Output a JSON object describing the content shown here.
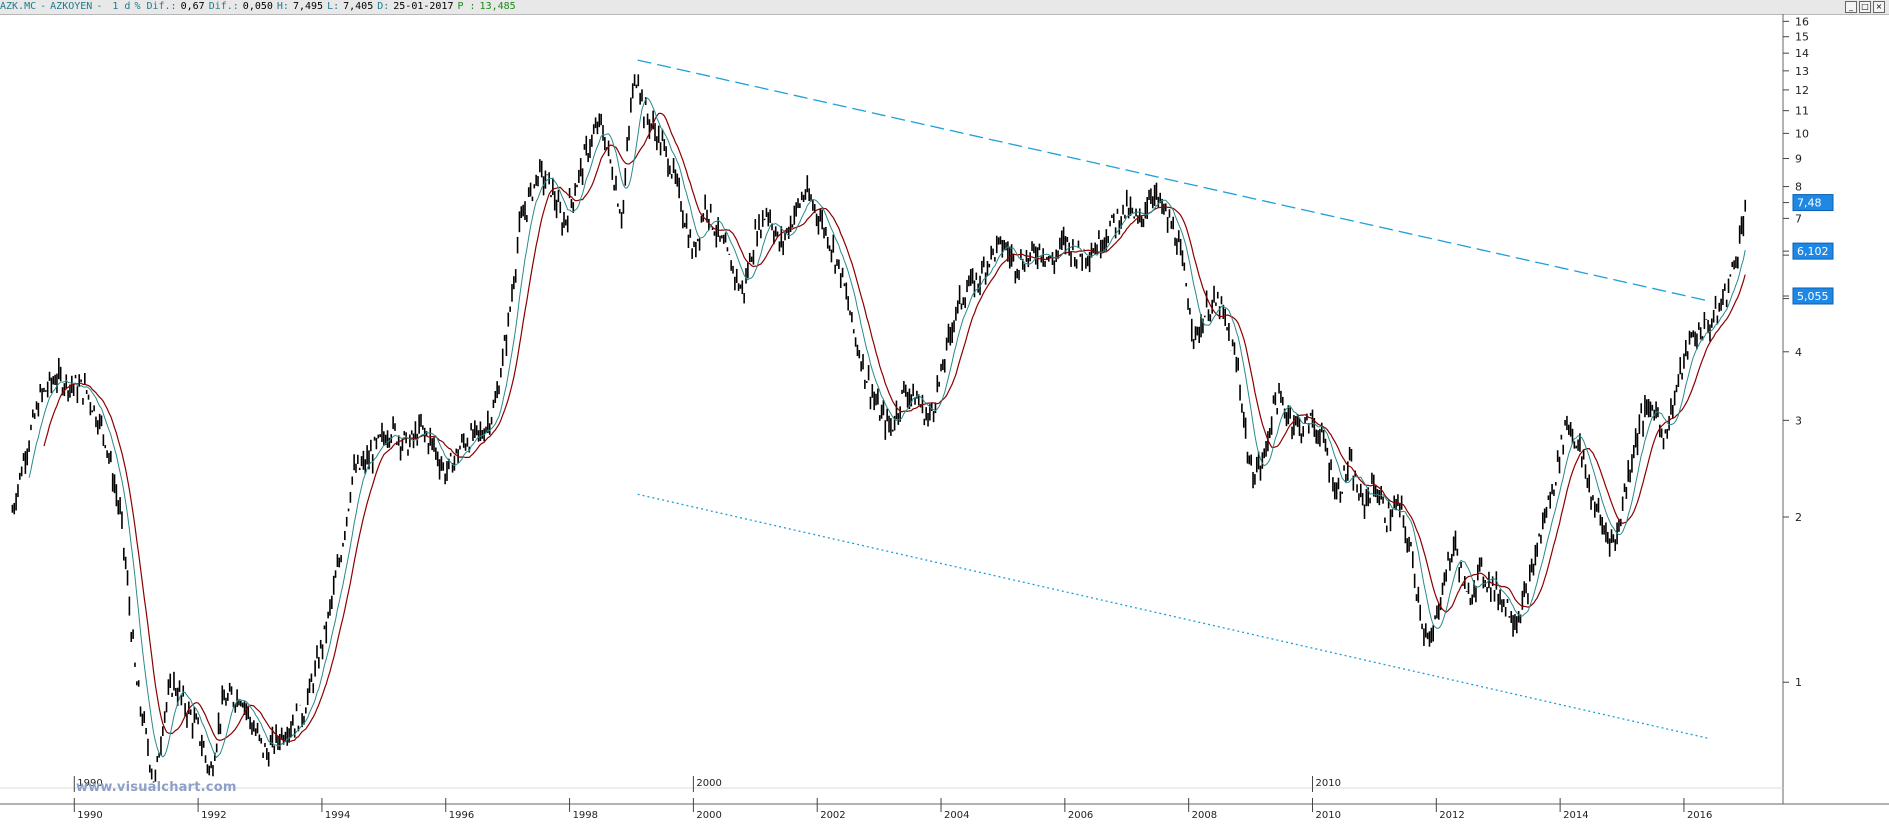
{
  "header": {
    "symbol": "AZK.MC",
    "sep1": "-",
    "name": "AZKOYEN",
    "sep2": "-",
    "period": "1 d",
    "dif_pct_label": "% Dif.:",
    "dif_pct_value": "0,67",
    "dif_label": "Dif.:",
    "dif_value": "0,050",
    "high_label": "H:",
    "high_value": "7,495",
    "low_label": "L:",
    "low_value": "7,405",
    "date_label": "D:",
    "date_value": "25-01-2017",
    "p_label": "P :",
    "p_value": "13,485"
  },
  "window_controls": [
    "_",
    "□",
    "×"
  ],
  "watermark": "www.visualchart.com",
  "colors": {
    "candles": "#000000",
    "ma_slow": "#8b0000",
    "ma_fast": "#2a8a8a",
    "trendline": "#1ea0d8",
    "badge": "#1e88e5"
  },
  "chart_data": {
    "type": "candlestick",
    "y_scale": "log",
    "ylim": [
      0.6,
      16.5
    ],
    "xlim": [
      1988.8,
      2017.6
    ],
    "y_ticks": [
      1,
      2,
      3,
      4,
      5,
      6,
      7,
      8,
      9,
      10,
      11,
      12,
      13,
      14,
      15,
      16
    ],
    "y_tick_labels": [
      "1",
      "2",
      "3",
      "4",
      "",
      "",
      "7",
      "8",
      "9",
      "10",
      "11",
      "12",
      "13",
      "14",
      "15",
      "16"
    ],
    "x_ticks": [
      1990,
      1992,
      1994,
      1996,
      1998,
      2000,
      2002,
      2004,
      2006,
      2008,
      2010,
      2012,
      2014,
      2016
    ],
    "x_tick_labels": [
      "1990",
      "1992",
      "1994",
      "1996",
      "1998",
      "2000",
      "2002",
      "2004",
      "2006",
      "2008",
      "2010",
      "2012",
      "2014",
      "2016"
    ],
    "x_upper_labels": [
      {
        "x": 1990,
        "label": "1990"
      },
      {
        "x": 2000,
        "label": "2000"
      },
      {
        "x": 2010,
        "label": "2010"
      }
    ],
    "series": [
      {
        "points": [
          [
            1989.0,
            2.05
          ],
          [
            1989.2,
            2.6
          ],
          [
            1989.45,
            3.3
          ],
          [
            1989.7,
            3.6
          ],
          [
            1989.9,
            3.5
          ],
          [
            1990.2,
            3.4
          ],
          [
            1990.5,
            2.8
          ],
          [
            1990.75,
            2.0
          ],
          [
            1990.85,
            1.55
          ],
          [
            1991.0,
            1.0
          ],
          [
            1991.2,
            0.75
          ],
          [
            1991.3,
            0.65
          ],
          [
            1991.45,
            0.88
          ],
          [
            1991.6,
            1.0
          ],
          [
            1991.8,
            0.9
          ],
          [
            1992.0,
            0.82
          ],
          [
            1992.2,
            0.68
          ],
          [
            1992.4,
            0.92
          ],
          [
            1992.7,
            0.95
          ],
          [
            1992.9,
            0.82
          ],
          [
            1993.1,
            0.74
          ],
          [
            1993.4,
            0.82
          ],
          [
            1993.7,
            0.88
          ],
          [
            1993.9,
            1.05
          ],
          [
            1994.1,
            1.3
          ],
          [
            1994.3,
            1.7
          ],
          [
            1994.5,
            2.4
          ],
          [
            1994.7,
            2.5
          ],
          [
            1994.9,
            2.7
          ],
          [
            1995.1,
            2.9
          ],
          [
            1995.4,
            2.7
          ],
          [
            1995.6,
            2.9
          ],
          [
            1995.8,
            2.7
          ],
          [
            1996.0,
            2.4
          ],
          [
            1996.3,
            2.75
          ],
          [
            1996.6,
            2.85
          ],
          [
            1996.8,
            3.2
          ],
          [
            1997.0,
            4.4
          ],
          [
            1997.2,
            6.8
          ],
          [
            1997.5,
            8.5
          ],
          [
            1997.7,
            8.0
          ],
          [
            1997.9,
            6.8
          ],
          [
            1998.1,
            8.0
          ],
          [
            1998.3,
            9.4
          ],
          [
            1998.5,
            10.5
          ],
          [
            1998.7,
            8.5
          ],
          [
            1998.85,
            7.0
          ],
          [
            1999.0,
            11.5
          ],
          [
            1999.1,
            13.0
          ],
          [
            1999.2,
            11.0
          ],
          [
            1999.4,
            10.0
          ],
          [
            1999.6,
            9.0
          ],
          [
            1999.8,
            7.5
          ],
          [
            2000.0,
            6.0
          ],
          [
            2000.2,
            7.5
          ],
          [
            2000.4,
            6.5
          ],
          [
            2000.6,
            5.8
          ],
          [
            2000.8,
            5.1
          ],
          [
            2001.0,
            6.5
          ],
          [
            2001.2,
            7.3
          ],
          [
            2001.4,
            6.2
          ],
          [
            2001.6,
            7.0
          ],
          [
            2001.8,
            7.8
          ],
          [
            2002.0,
            7.2
          ],
          [
            2002.2,
            6.4
          ],
          [
            2002.4,
            5.5
          ],
          [
            2002.6,
            4.3
          ],
          [
            2002.8,
            3.6
          ],
          [
            2003.0,
            3.1
          ],
          [
            2003.2,
            2.9
          ],
          [
            2003.4,
            3.4
          ],
          [
            2003.6,
            3.3
          ],
          [
            2003.8,
            3.0
          ],
          [
            2004.0,
            3.6
          ],
          [
            2004.2,
            4.6
          ],
          [
            2004.4,
            5.2
          ],
          [
            2004.6,
            5.4
          ],
          [
            2004.8,
            6.0
          ],
          [
            2005.0,
            6.3
          ],
          [
            2005.2,
            5.8
          ],
          [
            2005.4,
            5.9
          ],
          [
            2005.6,
            6.2
          ],
          [
            2005.8,
            5.8
          ],
          [
            2006.0,
            6.4
          ],
          [
            2006.2,
            6.0
          ],
          [
            2006.5,
            6.2
          ],
          [
            2006.8,
            6.9
          ],
          [
            2007.0,
            7.3
          ],
          [
            2007.2,
            6.8
          ],
          [
            2007.4,
            7.9
          ],
          [
            2007.6,
            7.2
          ],
          [
            2007.8,
            6.5
          ],
          [
            2008.0,
            5.0
          ],
          [
            2008.1,
            4.2
          ],
          [
            2008.3,
            4.8
          ],
          [
            2008.5,
            4.9
          ],
          [
            2008.8,
            3.7
          ],
          [
            2009.0,
            2.4
          ],
          [
            2009.2,
            2.5
          ],
          [
            2009.4,
            3.3
          ],
          [
            2009.6,
            3.1
          ],
          [
            2009.8,
            2.9
          ],
          [
            2010.0,
            3.0
          ],
          [
            2010.2,
            2.7
          ],
          [
            2010.4,
            2.2
          ],
          [
            2010.6,
            2.5
          ],
          [
            2010.8,
            2.1
          ],
          [
            2011.0,
            2.3
          ],
          [
            2011.2,
            2.0
          ],
          [
            2011.4,
            2.1
          ],
          [
            2011.6,
            1.7
          ],
          [
            2011.8,
            1.25
          ],
          [
            2011.9,
            1.15
          ],
          [
            2012.1,
            1.5
          ],
          [
            2012.3,
            1.8
          ],
          [
            2012.5,
            1.4
          ],
          [
            2012.7,
            1.6
          ],
          [
            2012.9,
            1.5
          ],
          [
            2013.1,
            1.4
          ],
          [
            2013.3,
            1.3
          ],
          [
            2013.5,
            1.5
          ],
          [
            2013.7,
            1.9
          ],
          [
            2013.9,
            2.3
          ],
          [
            2014.1,
            3.0
          ],
          [
            2014.3,
            2.7
          ],
          [
            2014.5,
            2.2
          ],
          [
            2014.7,
            1.9
          ],
          [
            2014.9,
            1.8
          ],
          [
            2015.1,
            2.4
          ],
          [
            2015.3,
            3.0
          ],
          [
            2015.5,
            3.2
          ],
          [
            2015.7,
            2.8
          ],
          [
            2015.9,
            3.5
          ],
          [
            2016.1,
            4.2
          ],
          [
            2016.3,
            4.4
          ],
          [
            2016.5,
            4.6
          ],
          [
            2016.7,
            5.2
          ],
          [
            2016.85,
            6.0
          ],
          [
            2017.0,
            7.48
          ]
        ]
      }
    ],
    "trendlines": [
      {
        "style": "dashed",
        "from": [
          1999.1,
          13.6
        ],
        "to": [
          2016.4,
          4.95
        ]
      },
      {
        "style": "dotted",
        "from": [
          1999.1,
          2.2
        ],
        "to": [
          2016.4,
          0.79
        ]
      }
    ],
    "price_badges": [
      {
        "label": "7,48",
        "value": 7.48
      },
      {
        "label": "6,102",
        "value": 6.102
      },
      {
        "label": "5,055",
        "value": 5.055
      }
    ]
  }
}
